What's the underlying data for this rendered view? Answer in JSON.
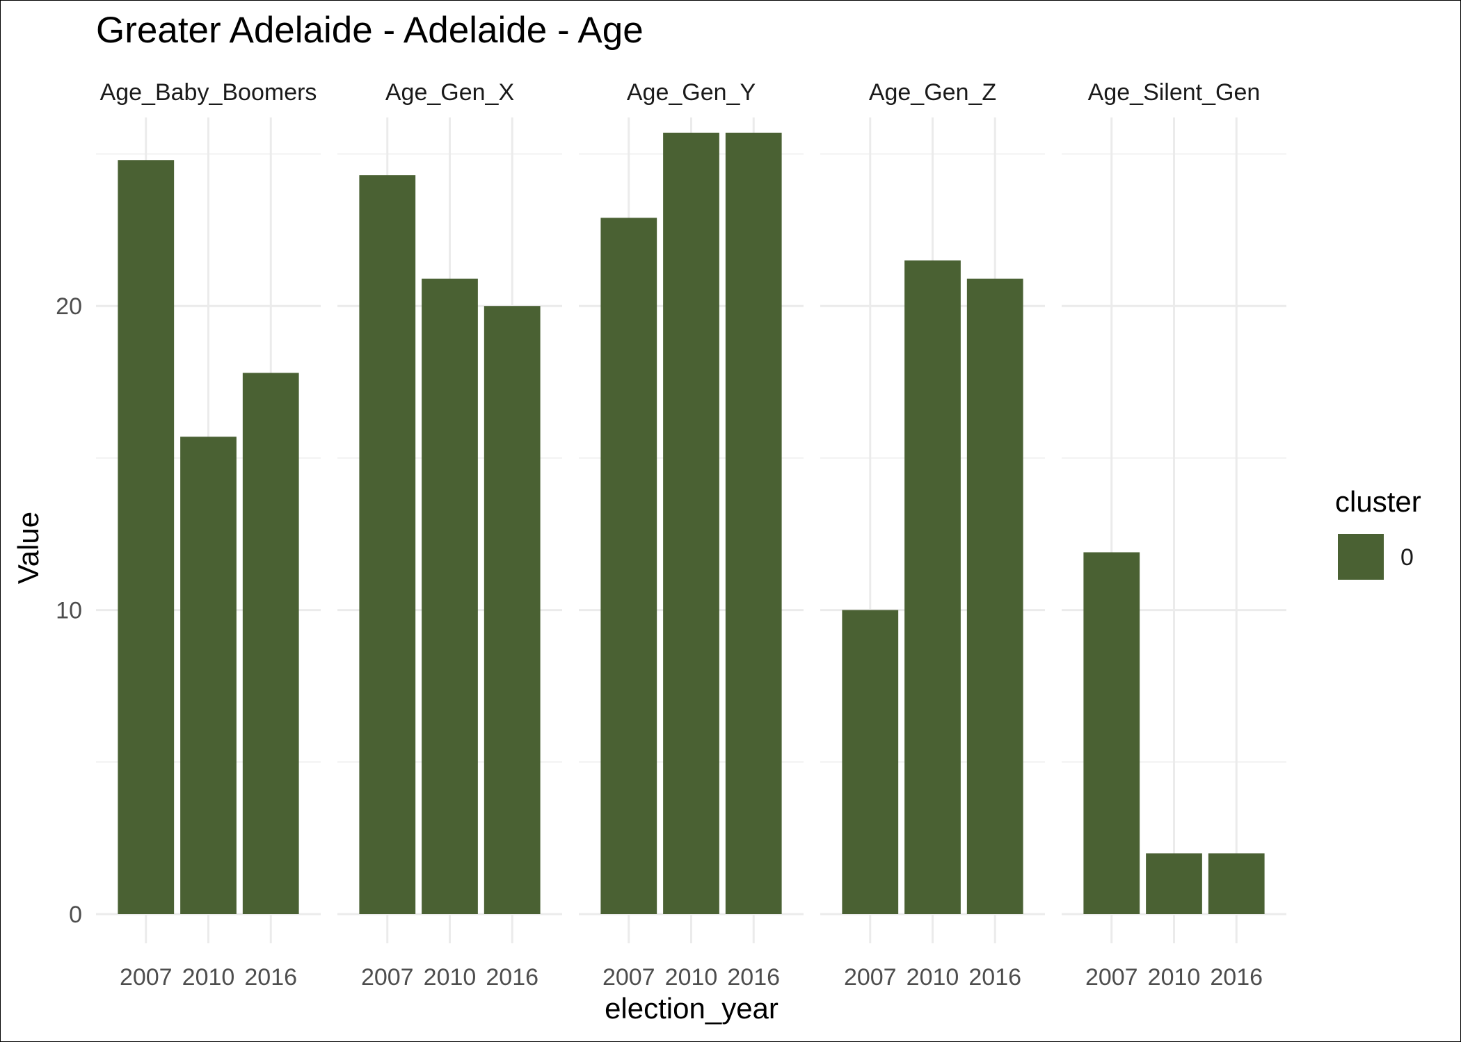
{
  "chart_data": {
    "type": "bar",
    "title": "Greater Adelaide - Adelaide - Age",
    "xlabel": "election_year",
    "ylabel": "Value",
    "ylim": [
      0,
      26.2
    ],
    "yticks": [
      0,
      10,
      20
    ],
    "grid": true,
    "bar_color": "#4a6133",
    "categories": [
      "2007",
      "2010",
      "2016"
    ],
    "facets": [
      {
        "name": "Age_Baby_Boomers",
        "values": [
          24.8,
          15.7,
          17.8
        ]
      },
      {
        "name": "Age_Gen_X",
        "values": [
          24.3,
          20.9,
          20.0
        ]
      },
      {
        "name": "Age_Gen_Y",
        "values": [
          22.9,
          25.7,
          25.7
        ]
      },
      {
        "name": "Age_Gen_Z",
        "values": [
          10.0,
          21.5,
          20.9
        ]
      },
      {
        "name": "Age_Silent_Gen",
        "values": [
          11.9,
          2.0,
          2.0
        ]
      }
    ],
    "legend": {
      "title": "cluster",
      "placement": "right",
      "items": [
        {
          "label": "0",
          "color": "#4a6133"
        }
      ]
    }
  }
}
